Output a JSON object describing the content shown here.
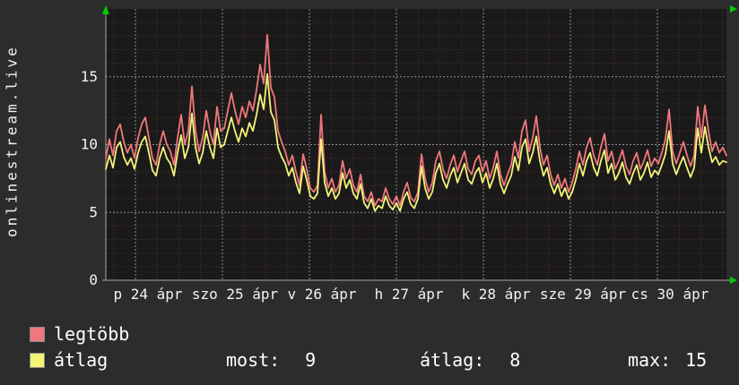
{
  "vertical_title": "onlinestream.live",
  "colors": {
    "background": "#2c2c2c",
    "plot_background": "#1a1a1a",
    "grid_minor": "#5a2b2b",
    "grid_major": "#8f8f8f",
    "axis": "#a8a8a8",
    "arrow": "#00cc00",
    "text": "#f2f2f2",
    "legtobb_line": "#f0777c",
    "atlag_line": "#f4f477"
  },
  "chart_data": {
    "type": "line",
    "title": "",
    "xlabel": "",
    "ylabel": "onlinestream.live",
    "ylim": [
      0,
      20
    ],
    "yticks": [
      0,
      5,
      10,
      15
    ],
    "grid": "on",
    "legend_position": "bottom-left",
    "x_day_labels": [
      "p 24 ápr",
      "szo 25 ápr",
      "v 26 ápr",
      "h 27 ápr",
      "k 28 ápr",
      "sze 29 ápr",
      "cs 30 ápr"
    ],
    "x_minor_divisions_per_day": 4,
    "series": [
      {
        "name": "legtöbb",
        "color": "#f0777c",
        "values": [
          9.0,
          10.4,
          9.2,
          11.0,
          11.5,
          10.2,
          9.4,
          10.0,
          9.0,
          10.5,
          11.5,
          12.0,
          10.5,
          9.0,
          8.5,
          10.0,
          11.0,
          10.0,
          9.5,
          8.5,
          10.5,
          12.2,
          10.0,
          11.0,
          14.3,
          11.0,
          9.5,
          10.5,
          12.5,
          11.0,
          10.0,
          12.8,
          11.0,
          11.2,
          12.5,
          13.8,
          12.5,
          11.5,
          12.8,
          12.0,
          13.2,
          12.5,
          14.0,
          15.9,
          14.5,
          18.1,
          14.2,
          13.5,
          11.0,
          10.2,
          9.5,
          8.5,
          9.2,
          8.0,
          7.0,
          9.3,
          8.2,
          6.8,
          6.5,
          7.0,
          12.2,
          8.0,
          6.8,
          7.5,
          6.5,
          7.0,
          8.8,
          7.5,
          8.2,
          7.0,
          6.5,
          7.8,
          6.2,
          5.8,
          6.5,
          5.5,
          6.0,
          5.8,
          6.8,
          6.0,
          5.6,
          6.2,
          5.5,
          6.5,
          7.2,
          6.1,
          5.8,
          6.5,
          9.3,
          7.5,
          6.5,
          7.2,
          8.8,
          9.5,
          8.2,
          7.5,
          8.5,
          9.2,
          8.0,
          8.8,
          9.5,
          8.2,
          7.8,
          8.8,
          9.2,
          8.0,
          8.8,
          7.5,
          8.3,
          9.5,
          7.8,
          7.0,
          7.8,
          8.5,
          10.2,
          9.0,
          11.0,
          11.8,
          9.5,
          10.5,
          12.1,
          9.8,
          8.5,
          9.2,
          7.8,
          7.0,
          7.8,
          6.8,
          7.5,
          6.5,
          7.2,
          8.2,
          9.5,
          8.5,
          9.8,
          10.5,
          9.2,
          8.5,
          9.8,
          10.8,
          8.8,
          9.5,
          8.2,
          8.8,
          9.6,
          8.4,
          7.8,
          8.8,
          9.4,
          8.2,
          8.8,
          9.6,
          8.4,
          9.0,
          8.6,
          9.4,
          10.4,
          12.6,
          9.5,
          8.6,
          9.4,
          10.2,
          9.2,
          8.4,
          9.2,
          12.8,
          10.5,
          12.9,
          11.0,
          9.5,
          10.2,
          9.4,
          9.8,
          9.2
        ]
      },
      {
        "name": "átlag",
        "color": "#f4f477",
        "values": [
          8.2,
          9.2,
          8.3,
          9.8,
          10.2,
          9.1,
          8.5,
          9.0,
          8.2,
          9.4,
          10.2,
          10.6,
          9.4,
          8.1,
          7.7,
          9.0,
          9.8,
          9.0,
          8.6,
          7.7,
          9.4,
          10.7,
          9.0,
          9.8,
          12.3,
          9.8,
          8.6,
          9.4,
          11.0,
          9.8,
          9.0,
          11.2,
          9.8,
          10.0,
          11.0,
          12.0,
          11.0,
          10.2,
          11.2,
          10.6,
          11.6,
          11.0,
          12.2,
          13.7,
          12.6,
          15.2,
          12.4,
          11.8,
          9.8,
          9.1,
          8.6,
          7.7,
          8.3,
          7.2,
          6.4,
          8.4,
          7.4,
          6.2,
          6.0,
          6.4,
          10.4,
          7.2,
          6.2,
          6.8,
          6.0,
          6.4,
          7.9,
          6.8,
          7.4,
          6.4,
          6.0,
          7.1,
          5.7,
          5.3,
          6.0,
          5.1,
          5.5,
          5.3,
          6.2,
          5.5,
          5.2,
          5.7,
          5.1,
          6.0,
          6.5,
          5.6,
          5.3,
          6.0,
          8.4,
          6.8,
          6.0,
          6.5,
          7.9,
          8.6,
          7.4,
          6.8,
          7.7,
          8.3,
          7.2,
          7.9,
          8.6,
          7.4,
          7.1,
          7.9,
          8.3,
          7.2,
          7.9,
          6.8,
          7.5,
          8.6,
          7.1,
          6.4,
          7.1,
          7.7,
          9.1,
          8.1,
          9.8,
          10.4,
          8.6,
          9.4,
          10.6,
          8.8,
          7.7,
          8.3,
          7.1,
          6.4,
          7.1,
          6.2,
          6.8,
          6.0,
          6.5,
          7.4,
          8.6,
          7.7,
          8.8,
          9.4,
          8.3,
          7.7,
          8.8,
          9.6,
          7.9,
          8.6,
          7.4,
          7.9,
          8.7,
          7.6,
          7.1,
          7.9,
          8.5,
          7.4,
          7.9,
          8.7,
          7.6,
          8.1,
          7.8,
          8.5,
          9.3,
          11.0,
          8.6,
          7.8,
          8.5,
          9.1,
          8.3,
          7.6,
          8.3,
          11.2,
          9.4,
          11.3,
          9.8,
          8.7,
          9.1,
          8.5,
          8.8,
          8.7
        ]
      }
    ]
  },
  "legend": {
    "items": [
      {
        "label": "legtöbb",
        "color": "#f0777c"
      },
      {
        "label": "átlag",
        "color": "#f4f477"
      }
    ],
    "stats": [
      {
        "label": "most:",
        "value": "9"
      },
      {
        "label": "átlag:",
        "value": "8"
      },
      {
        "label": "max:",
        "value": "15"
      }
    ]
  }
}
